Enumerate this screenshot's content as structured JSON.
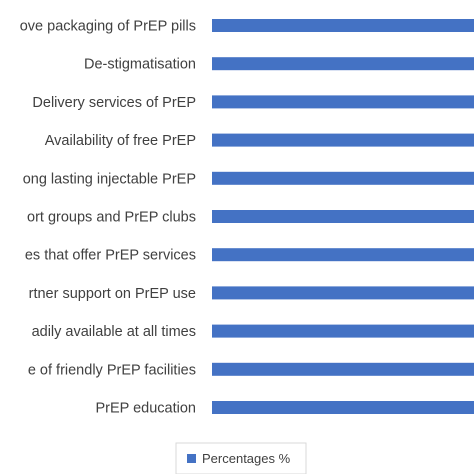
{
  "chart_data": {
    "type": "bar",
    "orientation": "horizontal",
    "categories": [
      "ove packaging of PrEP pills",
      "De-stigmatisation",
      "Delivery services of PrEP",
      "Availability of free PrEP",
      "ong lasting injectable PrEP",
      "ort groups and PrEP clubs",
      "es that offer PrEP services",
      "rtner support on PrEP use",
      "adily available at all times",
      "e of friendly PrEP facilities",
      "PrEP education"
    ],
    "series": [
      {
        "name": "Percentages %",
        "color": "#4472c4",
        "values": [
          100,
          100,
          100,
          100,
          100,
          100,
          100,
          100,
          100,
          100,
          100
        ]
      }
    ],
    "xlim": [
      0,
      100
    ],
    "grid": false,
    "legend_position": "bottom"
  }
}
